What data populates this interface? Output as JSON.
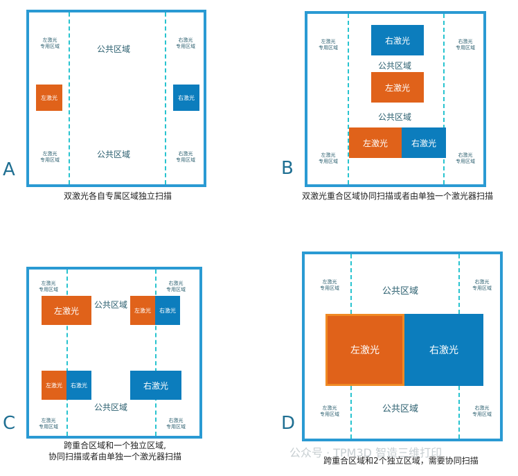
{
  "labels": {
    "public": "公共区域",
    "left_private": "左激光\n专用区域",
    "right_private": "右激光\n专用区域",
    "left_laser": "左激光",
    "right_laser": "右激光"
  },
  "panels": {
    "A": {
      "letter": "A",
      "caption": "双激光各自专属区域独立扫描"
    },
    "B": {
      "letter": "B",
      "caption": "双激光重合区域协同扫描或者由单独一个激光器扫描"
    },
    "C": {
      "letter": "C",
      "caption_line1": "跨重合区域和一个独立区域,",
      "caption_line2": "协同扫描或者由单独一个激光器扫描"
    },
    "D": {
      "letter": "D",
      "caption": "跨重合区域和2个独立区域，需要协同扫描"
    }
  },
  "watermark": "公众号 · TPM3D 智造三维打印",
  "colors": {
    "left_laser": "#e0621a",
    "right_laser": "#0c7dbd",
    "frame": "#2a9ad3",
    "divider": "#27c3cf"
  }
}
